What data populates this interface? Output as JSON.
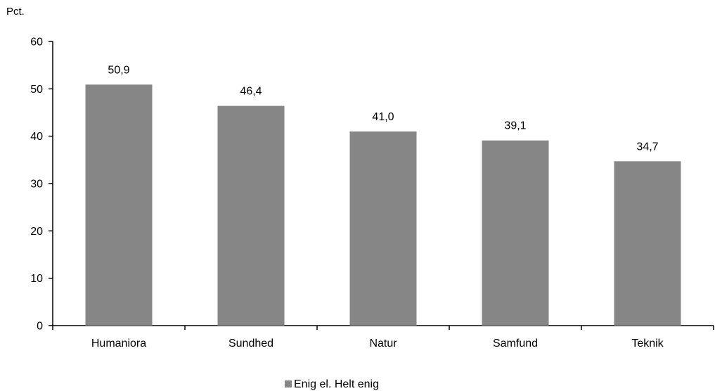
{
  "chart_data": {
    "type": "bar",
    "categories": [
      "Humaniora",
      "Sundhed",
      "Natur",
      "Samfund",
      "Teknik"
    ],
    "series": [
      {
        "name": "Enig el. Helt enig",
        "values": [
          50.9,
          46.4,
          41.0,
          39.1,
          34.7
        ],
        "labels": [
          "50,9",
          "46,4",
          "41,0",
          "39,1",
          "34,7"
        ],
        "color": "#868686"
      }
    ],
    "ylabel": "Pct.",
    "ylim": [
      0,
      60
    ],
    "yticks": [
      0,
      10,
      20,
      30,
      40,
      50,
      60
    ],
    "grid": false,
    "legend_position": "bottom"
  }
}
